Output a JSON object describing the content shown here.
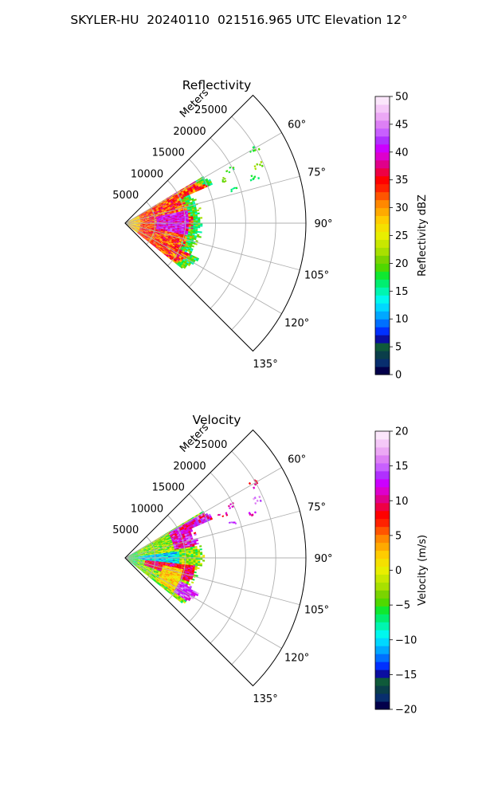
{
  "title": "SKYLER-HU  20240110  021516.965 UTC Elevation 12°",
  "chart_data": [
    {
      "type": "heatmap",
      "subtype": "polar-sector (PPI)",
      "title": "Reflectivity",
      "radial_axis_label": "Meters",
      "radial_ticks": [
        5000,
        10000,
        15000,
        20000,
        25000
      ],
      "radial_tick_labels": [
        "5000",
        "10000",
        "15000",
        "20000",
        "25000"
      ],
      "rlim": [
        0,
        30000
      ],
      "azimuth_ticks_deg": [
        60,
        75,
        90,
        105,
        120,
        135
      ],
      "azimuth_tick_labels": [
        "60°",
        "75°",
        "90°",
        "105°",
        "120°",
        "135°"
      ],
      "sector_deg": [
        45,
        135
      ],
      "grid": true,
      "colorbar": {
        "label": "Reflectivity dBZ",
        "range": [
          0,
          50
        ],
        "ticks": [
          0,
          5,
          10,
          15,
          20,
          25,
          30,
          35,
          40,
          45,
          50
        ],
        "tick_labels": [
          "0",
          "5",
          "10",
          "15",
          "20",
          "25",
          "30",
          "35",
          "40",
          "45",
          "50"
        ],
        "colors": [
          "#03004a",
          "#082e6e",
          "#0a3e4a",
          "#0f5a3a",
          "#0b0ea0",
          "#0030ff",
          "#0070ff",
          "#00a8ff",
          "#00d8ff",
          "#00f8ee",
          "#00f5b0",
          "#00ee70",
          "#10e830",
          "#50d800",
          "#7ad400",
          "#a8e000",
          "#c8e800",
          "#e8ee00",
          "#f5e000",
          "#ffcc00",
          "#ffaa00",
          "#ff8800",
          "#ff5500",
          "#ff2200",
          "#ff0000",
          "#ee0044",
          "#e0008a",
          "#dd00cc",
          "#cc00ff",
          "#b030ff",
          "#c860ff",
          "#dd80f5",
          "#eca8f5",
          "#f5c8f8",
          "#fbe6fb"
        ]
      },
      "field_regions_dbz": [
        {
          "from_deg": 60,
          "to_deg": 70,
          "r_min": 16000,
          "r_max": 22000,
          "dbz": 18
        },
        {
          "from_deg": 72,
          "to_deg": 112,
          "r_min": 2000,
          "r_max": 13000,
          "dbz": 36
        },
        {
          "from_deg": 80,
          "to_deg": 100,
          "r_min": 6000,
          "r_max": 11000,
          "dbz": 42
        },
        {
          "from_deg": 70,
          "to_deg": 115,
          "r_min": 11000,
          "r_max": 14500,
          "dbz": 20
        }
      ]
    },
    {
      "type": "heatmap",
      "subtype": "polar-sector (PPI)",
      "title": "Velocity",
      "radial_axis_label": "Meters",
      "radial_ticks": [
        5000,
        10000,
        15000,
        20000,
        25000
      ],
      "radial_tick_labels": [
        "5000",
        "10000",
        "15000",
        "20000",
        "25000"
      ],
      "rlim": [
        0,
        30000
      ],
      "azimuth_ticks_deg": [
        60,
        75,
        90,
        105,
        120,
        135
      ],
      "azimuth_tick_labels": [
        "60°",
        "75°",
        "90°",
        "105°",
        "120°",
        "135°"
      ],
      "sector_deg": [
        45,
        135
      ],
      "grid": true,
      "colorbar": {
        "label": "Velocity (m/s)",
        "range": [
          -20,
          20
        ],
        "ticks": [
          -20,
          -15,
          -10,
          -5,
          0,
          5,
          10,
          15,
          20
        ],
        "tick_labels": [
          "−20",
          "−15",
          "−10",
          "−5",
          "0",
          "5",
          "10",
          "15",
          "20"
        ],
        "colors": [
          "#03004a",
          "#082e6e",
          "#0a3e4a",
          "#0f5a3a",
          "#0b0ea0",
          "#0030ff",
          "#0070ff",
          "#00a8ff",
          "#00d8ff",
          "#00f8ee",
          "#00f5b0",
          "#00ee70",
          "#10e830",
          "#50d800",
          "#7ad400",
          "#a8e000",
          "#c8e800",
          "#e8ee00",
          "#f5e000",
          "#ffcc00",
          "#ffaa00",
          "#ff8800",
          "#ff5500",
          "#ff2200",
          "#ff0000",
          "#ee0044",
          "#e0008a",
          "#dd00cc",
          "#cc00ff",
          "#b030ff",
          "#c860ff",
          "#dd80f5",
          "#eca8f5",
          "#f5c8f8",
          "#fbe6fb"
        ]
      },
      "field_regions_ms": [
        {
          "from_deg": 60,
          "to_deg": 72,
          "r_min": 9000,
          "r_max": 17000,
          "v": 13
        },
        {
          "from_deg": 72,
          "to_deg": 85,
          "r_min": 9000,
          "r_max": 15000,
          "v": 10
        },
        {
          "from_deg": 80,
          "to_deg": 95,
          "r_min": 1000,
          "r_max": 9000,
          "v": -10
        },
        {
          "from_deg": 95,
          "to_deg": 110,
          "r_min": 3000,
          "r_max": 12000,
          "v": 9
        },
        {
          "from_deg": 112,
          "to_deg": 130,
          "r_min": 8000,
          "r_max": 15000,
          "v": 14
        }
      ]
    }
  ]
}
